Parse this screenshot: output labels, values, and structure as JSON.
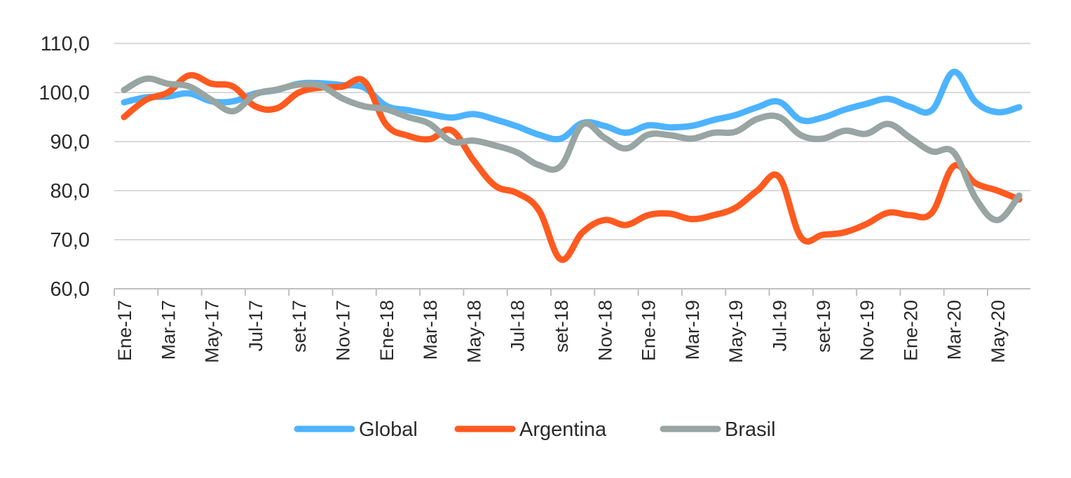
{
  "chart_data": {
    "type": "line",
    "title": "",
    "xlabel": "",
    "ylabel": "",
    "ylim": [
      60,
      110
    ],
    "yticks": [
      "60,0",
      "70,0",
      "80,0",
      "90,0",
      "100,0",
      "110,0"
    ],
    "ytick_values": [
      60,
      70,
      80,
      90,
      100,
      110
    ],
    "grid": true,
    "legend_position": "bottom",
    "x": [
      "Ene-17",
      "Feb-17",
      "Mar-17",
      "Abr-17",
      "May-17",
      "Jun-17",
      "Jul-17",
      "Ago-17",
      "set-17",
      "Oct-17",
      "Nov-17",
      "Dic-17",
      "Ene-18",
      "Feb-18",
      "Mar-18",
      "Abr-18",
      "May-18",
      "Jun-18",
      "Jul-18",
      "Ago-18",
      "set-18",
      "Oct-18",
      "Nov-18",
      "Dic-18",
      "Ene-19",
      "Feb-19",
      "Mar-19",
      "Abr-19",
      "May-19",
      "Jun-19",
      "Jul-19",
      "Ago-19",
      "set-19",
      "Oct-19",
      "Nov-19",
      "Dic-19",
      "Ene-20",
      "Feb-20",
      "Mar-20",
      "Abr-20",
      "May-20",
      "Jun-20"
    ],
    "xtick_labels": [
      {
        "index": 0,
        "label": "Ene-17"
      },
      {
        "index": 2,
        "label": "Mar-17"
      },
      {
        "index": 4,
        "label": "May-17"
      },
      {
        "index": 6,
        "label": "Jul-17"
      },
      {
        "index": 8,
        "label": "set-17"
      },
      {
        "index": 10,
        "label": "Nov-17"
      },
      {
        "index": 12,
        "label": "Ene-18"
      },
      {
        "index": 14,
        "label": "Mar-18"
      },
      {
        "index": 16,
        "label": "May-18"
      },
      {
        "index": 18,
        "label": "Jul-18"
      },
      {
        "index": 20,
        "label": "set-18"
      },
      {
        "index": 22,
        "label": "Nov-18"
      },
      {
        "index": 24,
        "label": "Ene-19"
      },
      {
        "index": 26,
        "label": "Mar-19"
      },
      {
        "index": 28,
        "label": "May-19"
      },
      {
        "index": 30,
        "label": "Jul-19"
      },
      {
        "index": 32,
        "label": "set-19"
      },
      {
        "index": 34,
        "label": "Nov-19"
      },
      {
        "index": 36,
        "label": "Ene-20"
      },
      {
        "index": 38,
        "label": "Mar-20"
      },
      {
        "index": 40,
        "label": "May-20"
      }
    ],
    "series": [
      {
        "name": "Global",
        "color": "#4db3ff",
        "values": [
          98.0,
          99.0,
          99.2,
          99.8,
          98.2,
          98.2,
          99.8,
          100.5,
          101.8,
          101.9,
          101.5,
          101.0,
          97.3,
          96.4,
          95.6,
          94.9,
          95.6,
          94.5,
          93.1,
          91.4,
          90.6,
          93.8,
          93.2,
          91.8,
          93.3,
          92.9,
          93.2,
          94.4,
          95.4,
          97.0,
          98.1,
          94.4,
          94.9,
          96.5,
          97.7,
          98.7,
          97.1,
          96.4,
          104.2,
          98.1,
          96.0,
          97.0
        ]
      },
      {
        "name": "Argentina",
        "color": "#ff5a1f",
        "values": [
          95.0,
          98.5,
          100.0,
          103.5,
          101.8,
          101.2,
          97.2,
          96.8,
          100.0,
          101.0,
          101.2,
          102.3,
          93.5,
          91.2,
          90.5,
          92.3,
          86.2,
          81.0,
          79.5,
          76.0,
          66.0,
          71.5,
          74.0,
          73.0,
          75.0,
          75.3,
          74.2,
          75.0,
          76.5,
          80.0,
          82.8,
          70.5,
          71.0,
          71.5,
          73.2,
          75.5,
          75.0,
          75.5,
          85.0,
          81.5,
          80.0,
          78.2
        ]
      },
      {
        "name": "Brasil",
        "color": "#98a5a2",
        "values": [
          100.5,
          102.8,
          101.8,
          101.2,
          98.5,
          96.2,
          99.6,
          100.6,
          101.6,
          101.4,
          98.8,
          97.2,
          96.6,
          95.0,
          93.6,
          90.0,
          90.2,
          89.2,
          87.8,
          85.2,
          85.0,
          93.5,
          90.8,
          88.6,
          91.4,
          91.3,
          90.6,
          91.8,
          92.0,
          94.6,
          95.0,
          91.3,
          90.6,
          92.2,
          91.6,
          93.6,
          90.8,
          88.0,
          87.8,
          78.5,
          74.0,
          79.0
        ]
      }
    ]
  }
}
